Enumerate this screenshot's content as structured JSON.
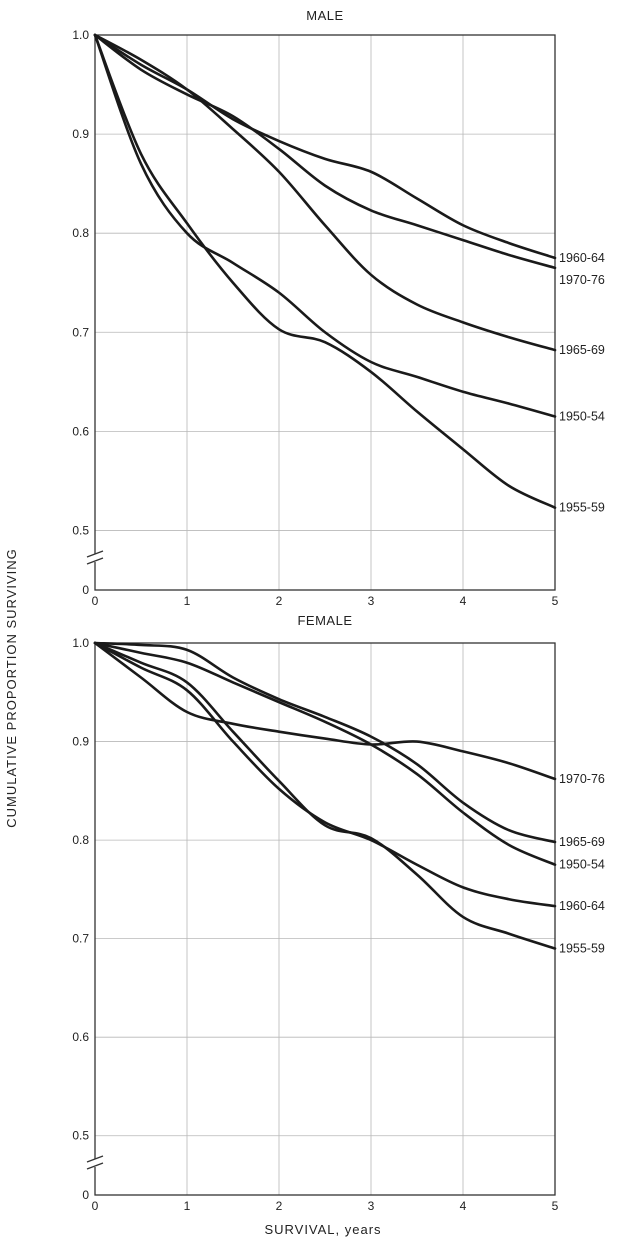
{
  "figure": {
    "ylabel": "CUMULATIVE PROPORTION SURVIVING",
    "xlabel": "SURVIVAL, years"
  },
  "chart_data": [
    {
      "type": "line",
      "title": "MALE",
      "xlabel": "SURVIVAL, years",
      "ylabel": "CUMULATIVE PROPORTION SURVIVING",
      "xlim": [
        0,
        5
      ],
      "ylim": [
        0,
        1.0
      ],
      "axis_break": "between 0 and 0.45",
      "x_ticks": [
        "0",
        "1",
        "2",
        "3",
        "4",
        "5"
      ],
      "y_ticks": [
        {
          "value": 1.0,
          "label": "1.0"
        },
        {
          "value": 0.9,
          "label": "0.9"
        },
        {
          "value": 0.8,
          "label": "0.8"
        },
        {
          "value": 0.7,
          "label": "0.7"
        },
        {
          "value": 0.6,
          "label": "0.6"
        },
        {
          "value": 0.5,
          "label": "0.5"
        },
        {
          "value": 0.0,
          "label": "0"
        }
      ],
      "grid": true,
      "series": [
        {
          "name": "1960-64",
          "points": [
            [
              0,
              1.0
            ],
            [
              0.5,
              0.97
            ],
            [
              1,
              0.945
            ],
            [
              1.5,
              0.915
            ],
            [
              2,
              0.893
            ],
            [
              2.5,
              0.875
            ],
            [
              3,
              0.862
            ],
            [
              3.5,
              0.835
            ],
            [
              4,
              0.808
            ],
            [
              4.5,
              0.79
            ],
            [
              5,
              0.775
            ]
          ]
        },
        {
          "name": "1970-76",
          "points": [
            [
              0,
              1.0
            ],
            [
              0.5,
              0.965
            ],
            [
              1,
              0.94
            ],
            [
              1.5,
              0.918
            ],
            [
              2,
              0.885
            ],
            [
              2.5,
              0.848
            ],
            [
              3,
              0.823
            ],
            [
              3.5,
              0.808
            ],
            [
              4,
              0.793
            ],
            [
              4.5,
              0.778
            ],
            [
              5,
              0.765
            ]
          ]
        },
        {
          "name": "1965-69",
          "points": [
            [
              0,
              1.0
            ],
            [
              0.5,
              0.975
            ],
            [
              1,
              0.945
            ],
            [
              1.5,
              0.905
            ],
            [
              2,
              0.862
            ],
            [
              2.5,
              0.808
            ],
            [
              3,
              0.758
            ],
            [
              3.5,
              0.728
            ],
            [
              4,
              0.71
            ],
            [
              4.5,
              0.695
            ],
            [
              5,
              0.682
            ]
          ]
        },
        {
          "name": "1950-54",
          "points": [
            [
              0,
              1.0
            ],
            [
              0.5,
              0.87
            ],
            [
              1,
              0.8
            ],
            [
              1.5,
              0.77
            ],
            [
              2,
              0.74
            ],
            [
              2.5,
              0.7
            ],
            [
              3,
              0.67
            ],
            [
              3.5,
              0.655
            ],
            [
              4,
              0.64
            ],
            [
              4.5,
              0.628
            ],
            [
              5,
              0.615
            ]
          ]
        },
        {
          "name": "1955-59",
          "points": [
            [
              0,
              1.0
            ],
            [
              0.5,
              0.88
            ],
            [
              1,
              0.81
            ],
            [
              1.5,
              0.75
            ],
            [
              2,
              0.703
            ],
            [
              2.5,
              0.69
            ],
            [
              3,
              0.66
            ],
            [
              3.5,
              0.62
            ],
            [
              4,
              0.582
            ],
            [
              4.5,
              0.545
            ],
            [
              5,
              0.523
            ]
          ]
        }
      ]
    },
    {
      "type": "line",
      "title": "FEMALE",
      "xlabel": "SURVIVAL, years",
      "ylabel": "CUMULATIVE PROPORTION SURVIVING",
      "xlim": [
        0,
        5
      ],
      "ylim": [
        0,
        1.0
      ],
      "axis_break": "between 0 and 0.45",
      "x_ticks": [
        "0",
        "1",
        "2",
        "3",
        "4",
        "5"
      ],
      "y_ticks": [
        {
          "value": 1.0,
          "label": "1.0"
        },
        {
          "value": 0.9,
          "label": "0.9"
        },
        {
          "value": 0.8,
          "label": "0.8"
        },
        {
          "value": 0.7,
          "label": "0.7"
        },
        {
          "value": 0.6,
          "label": "0.6"
        },
        {
          "value": 0.5,
          "label": "0.5"
        },
        {
          "value": 0.0,
          "label": "0"
        }
      ],
      "grid": true,
      "series": [
        {
          "name": "1970-76",
          "points": [
            [
              0,
              1.0
            ],
            [
              0.5,
              0.965
            ],
            [
              1,
              0.93
            ],
            [
              1.5,
              0.918
            ],
            [
              2,
              0.91
            ],
            [
              2.5,
              0.903
            ],
            [
              3,
              0.897
            ],
            [
              3.5,
              0.9
            ],
            [
              4,
              0.89
            ],
            [
              4.5,
              0.878
            ],
            [
              5,
              0.862
            ]
          ]
        },
        {
          "name": "1965-69",
          "points": [
            [
              0,
              1.0
            ],
            [
              0.5,
              0.998
            ],
            [
              1,
              0.993
            ],
            [
              1.5,
              0.965
            ],
            [
              2,
              0.943
            ],
            [
              2.5,
              0.925
            ],
            [
              3,
              0.905
            ],
            [
              3.5,
              0.877
            ],
            [
              4,
              0.838
            ],
            [
              4.5,
              0.81
            ],
            [
              5,
              0.798
            ]
          ]
        },
        {
          "name": "1950-54",
          "points": [
            [
              0,
              1.0
            ],
            [
              0.5,
              0.99
            ],
            [
              1,
              0.98
            ],
            [
              1.5,
              0.96
            ],
            [
              2,
              0.94
            ],
            [
              2.5,
              0.92
            ],
            [
              3,
              0.897
            ],
            [
              3.5,
              0.867
            ],
            [
              4,
              0.828
            ],
            [
              4.5,
              0.795
            ],
            [
              5,
              0.775
            ]
          ]
        },
        {
          "name": "1960-64",
          "points": [
            [
              0,
              1.0
            ],
            [
              0.5,
              0.975
            ],
            [
              1,
              0.952
            ],
            [
              1.5,
              0.9
            ],
            [
              2,
              0.852
            ],
            [
              2.5,
              0.818
            ],
            [
              3,
              0.8
            ],
            [
              3.5,
              0.775
            ],
            [
              4,
              0.752
            ],
            [
              4.5,
              0.74
            ],
            [
              5,
              0.733
            ]
          ]
        },
        {
          "name": "1955-59",
          "points": [
            [
              0,
              1.0
            ],
            [
              0.5,
              0.98
            ],
            [
              1,
              0.96
            ],
            [
              1.5,
              0.91
            ],
            [
              2,
              0.86
            ],
            [
              2.5,
              0.815
            ],
            [
              3,
              0.802
            ],
            [
              3.5,
              0.765
            ],
            [
              4,
              0.722
            ],
            [
              4.5,
              0.705
            ],
            [
              5,
              0.69
            ]
          ]
        }
      ]
    }
  ]
}
